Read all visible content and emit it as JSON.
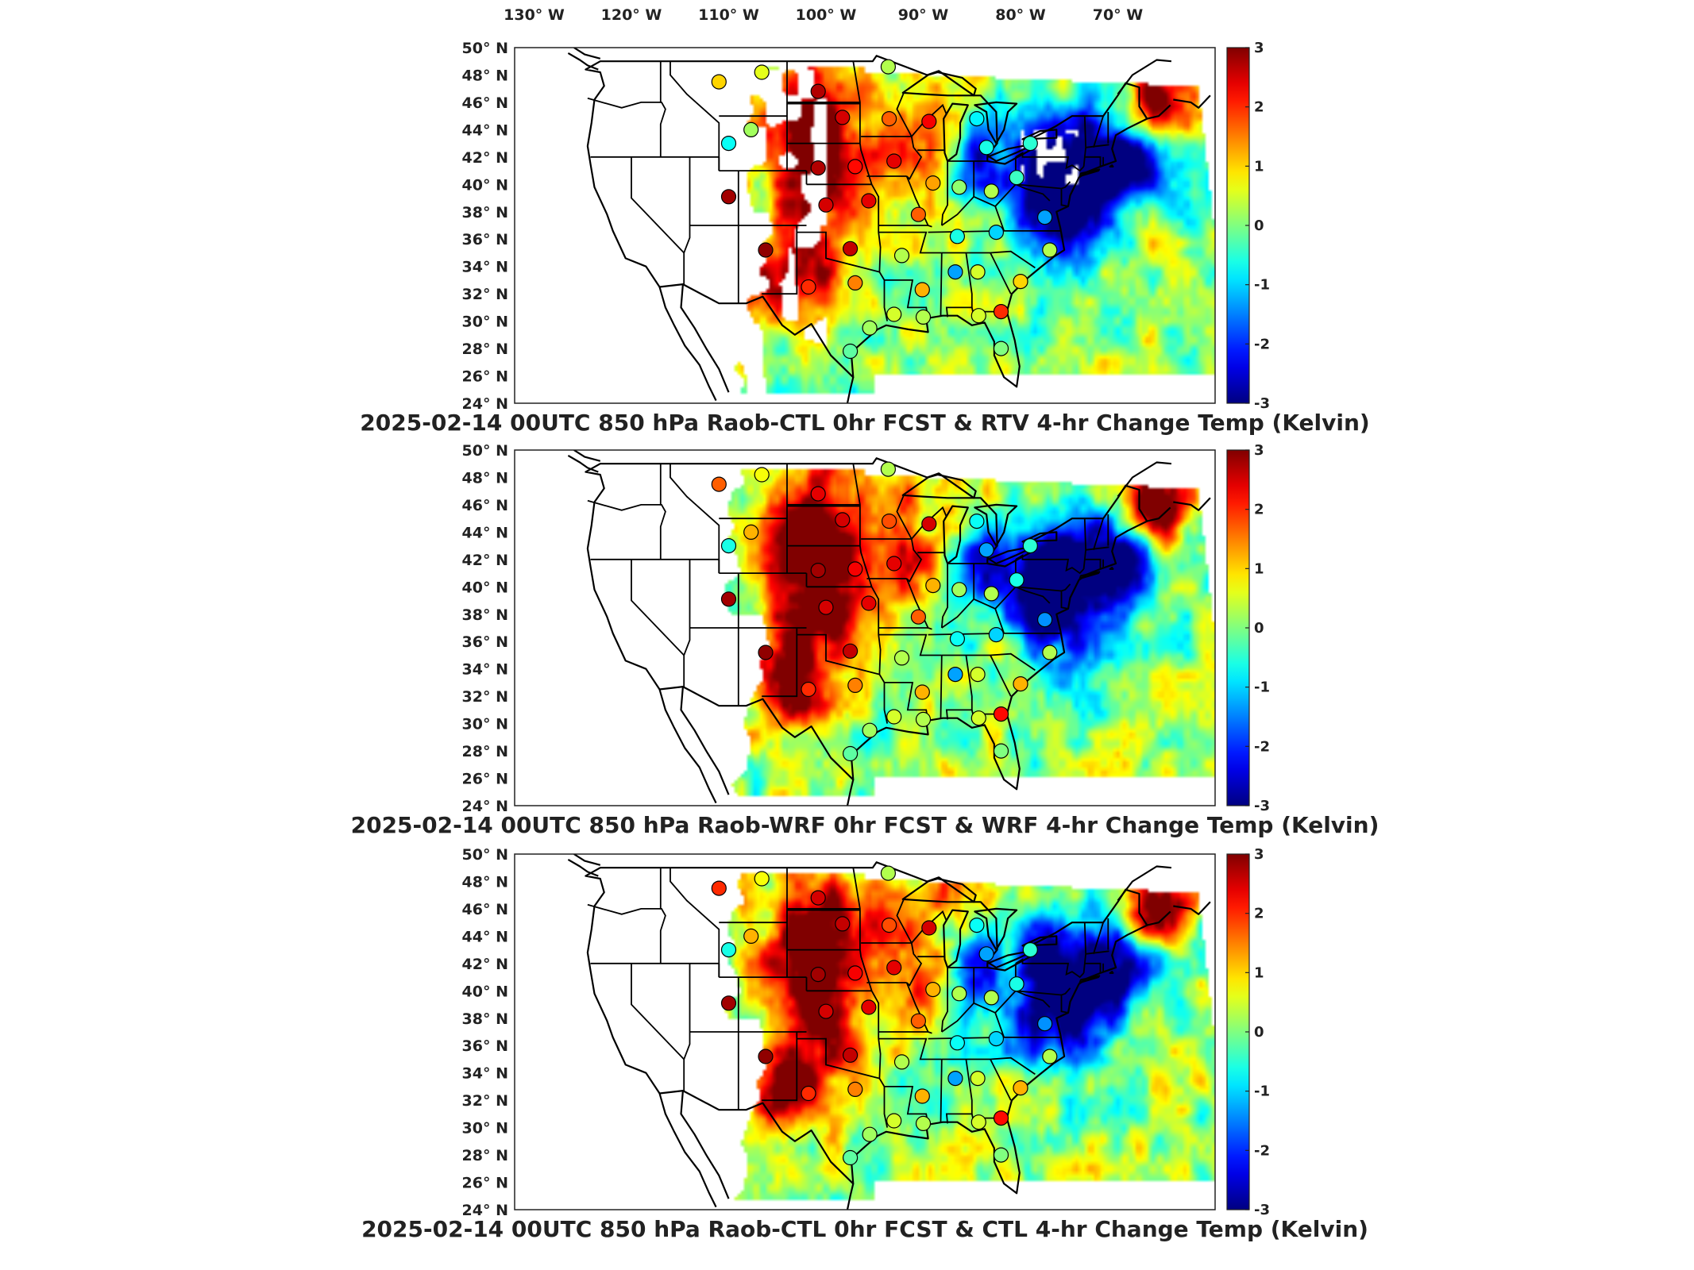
{
  "longitude_labels": [
    "130° W",
    "120° W",
    "110° W",
    "100° W",
    "90° W",
    "80° W",
    "70° W"
  ],
  "latitude_labels": [
    "50° N",
    "48° N",
    "46° N",
    "44° N",
    "42° N",
    "40° N",
    "38° N",
    "36° N",
    "34° N",
    "32° N",
    "30° N",
    "28° N",
    "26° N",
    "24° N"
  ],
  "colorbar": {
    "ticks": [
      "3",
      "2",
      "1",
      "0",
      "-1",
      "-2",
      "-3"
    ],
    "range": [
      -3,
      3
    ],
    "colormap": "jet"
  },
  "panels": [
    {
      "title": "2025-02-14 00UTC 850 hPa Raob-CTL 0hr FCST & RTV 4-hr Change Temp (Kelvin)",
      "field": "rtv"
    },
    {
      "title": "2025-02-14 00UTC 850 hPa Raob-WRF 0hr FCST & WRF 4-hr Change Temp (Kelvin)",
      "field": "wrf"
    },
    {
      "title": "2025-02-14 00UTC 850 hPa Raob-CTL 0hr FCST & CTL 4-hr Change Temp (Kelvin)",
      "field": "ctl"
    }
  ],
  "stations": [
    {
      "lon": -111.0,
      "lat": 47.5,
      "p": [
        1.0,
        1.7,
        2.0
      ]
    },
    {
      "lon": -106.6,
      "lat": 48.2,
      "p": [
        0.6,
        0.7,
        0.7
      ]
    },
    {
      "lon": -100.8,
      "lat": 46.8,
      "p": [
        2.7,
        2.4,
        2.5
      ]
    },
    {
      "lon": -93.6,
      "lat": 48.6,
      "p": [
        0.3,
        0.3,
        0.3
      ]
    },
    {
      "lon": -107.7,
      "lat": 44.0,
      "p": [
        0.2,
        1.2,
        1.2
      ]
    },
    {
      "lon": -110.0,
      "lat": 43.0,
      "p": [
        -0.7,
        -0.6,
        -0.6
      ]
    },
    {
      "lon": -98.3,
      "lat": 44.9,
      "p": [
        2.5,
        2.5,
        2.6
      ]
    },
    {
      "lon": -93.5,
      "lat": 44.8,
      "p": [
        1.7,
        1.8,
        1.8
      ]
    },
    {
      "lon": -89.4,
      "lat": 44.6,
      "p": [
        2.3,
        2.5,
        2.5
      ]
    },
    {
      "lon": -84.5,
      "lat": 44.8,
      "p": [
        -0.8,
        -0.7,
        -0.7
      ]
    },
    {
      "lon": -83.5,
      "lat": 42.7,
      "p": [
        -0.6,
        -1.3,
        -1.3
      ]
    },
    {
      "lon": -79.0,
      "lat": 43.0,
      "p": [
        -0.5,
        -0.5,
        -0.5
      ]
    },
    {
      "lon": -100.8,
      "lat": 41.2,
      "p": [
        2.7,
        2.8,
        2.8
      ]
    },
    {
      "lon": -97.0,
      "lat": 41.3,
      "p": [
        2.2,
        2.3,
        2.3
      ]
    },
    {
      "lon": -93.0,
      "lat": 41.7,
      "p": [
        2.4,
        2.4,
        2.4
      ]
    },
    {
      "lon": -89.0,
      "lat": 40.1,
      "p": [
        1.3,
        1.2,
        1.2
      ]
    },
    {
      "lon": -86.3,
      "lat": 39.8,
      "p": [
        0.1,
        0.2,
        0.3
      ]
    },
    {
      "lon": -83.0,
      "lat": 39.5,
      "p": [
        0.3,
        0.3,
        0.3
      ]
    },
    {
      "lon": -80.4,
      "lat": 40.5,
      "p": [
        -0.4,
        -0.6,
        -0.6
      ]
    },
    {
      "lon": -110.0,
      "lat": 39.1,
      "p": [
        2.8,
        2.8,
        2.8
      ]
    },
    {
      "lon": -100.0,
      "lat": 38.5,
      "p": [
        2.5,
        2.5,
        2.5
      ]
    },
    {
      "lon": -95.6,
      "lat": 38.8,
      "p": [
        2.4,
        2.4,
        2.4
      ]
    },
    {
      "lon": -90.5,
      "lat": 37.8,
      "p": [
        1.7,
        1.7,
        1.7
      ]
    },
    {
      "lon": -86.5,
      "lat": 36.2,
      "p": [
        -0.6,
        -0.7,
        -0.7
      ]
    },
    {
      "lon": -82.5,
      "lat": 36.5,
      "p": [
        -1.0,
        -1.0,
        -1.0
      ]
    },
    {
      "lon": -77.5,
      "lat": 37.6,
      "p": [
        -1.3,
        -1.4,
        -1.4
      ]
    },
    {
      "lon": -77.0,
      "lat": 35.2,
      "p": [
        0.3,
        0.3,
        0.3
      ]
    },
    {
      "lon": -106.2,
      "lat": 35.2,
      "p": [
        2.9,
        2.9,
        2.9
      ]
    },
    {
      "lon": -97.5,
      "lat": 35.3,
      "p": [
        2.6,
        2.6,
        2.6
      ]
    },
    {
      "lon": -92.2,
      "lat": 34.8,
      "p": [
        0.3,
        0.3,
        0.3
      ]
    },
    {
      "lon": -86.7,
      "lat": 33.6,
      "p": [
        -1.3,
        -1.3,
        -1.3
      ]
    },
    {
      "lon": -84.4,
      "lat": 33.6,
      "p": [
        0.5,
        0.5,
        0.5
      ]
    },
    {
      "lon": -80.0,
      "lat": 32.9,
      "p": [
        1.0,
        1.2,
        1.2
      ]
    },
    {
      "lon": -101.8,
      "lat": 32.5,
      "p": [
        2.0,
        2.0,
        2.0
      ]
    },
    {
      "lon": -97.0,
      "lat": 32.8,
      "p": [
        1.5,
        1.5,
        1.5
      ]
    },
    {
      "lon": -90.1,
      "lat": 32.3,
      "p": [
        1.2,
        1.2,
        1.2
      ]
    },
    {
      "lon": -93.0,
      "lat": 30.5,
      "p": [
        0.5,
        0.5,
        0.5
      ]
    },
    {
      "lon": -90.0,
      "lat": 30.3,
      "p": [
        0.3,
        0.3,
        0.3
      ]
    },
    {
      "lon": -82.0,
      "lat": 30.7,
      "p": [
        2.0,
        2.2,
        2.2
      ]
    },
    {
      "lon": -84.3,
      "lat": 30.4,
      "p": [
        0.5,
        0.5,
        0.5
      ]
    },
    {
      "lon": -95.5,
      "lat": 29.5,
      "p": [
        0.2,
        0.2,
        0.2
      ]
    },
    {
      "lon": -82.0,
      "lat": 28.0,
      "p": [
        0.0,
        0.0,
        0.0
      ]
    },
    {
      "lon": -97.5,
      "lat": 27.8,
      "p": [
        -0.2,
        -0.2,
        -0.2
      ]
    }
  ]
}
